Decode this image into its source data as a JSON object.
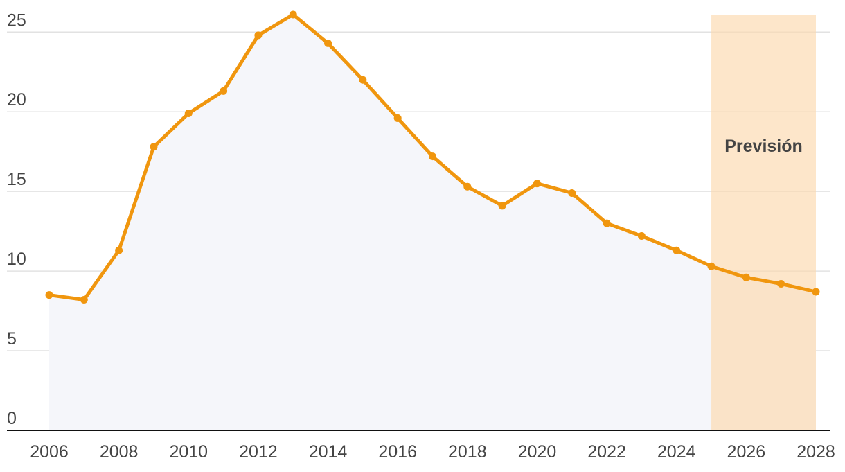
{
  "chart_data": {
    "type": "line",
    "x": [
      2006,
      2007,
      2008,
      2009,
      2010,
      2011,
      2012,
      2013,
      2014,
      2015,
      2016,
      2017,
      2018,
      2019,
      2020,
      2021,
      2022,
      2023,
      2024,
      2025,
      2026,
      2027,
      2028
    ],
    "series": [
      {
        "color": "#f0960e",
        "values": [
          8.5,
          8.2,
          11.3,
          17.8,
          19.9,
          21.3,
          24.8,
          26.1,
          24.3,
          22.0,
          19.6,
          17.2,
          15.3,
          14.1,
          15.5,
          14.9,
          13.0,
          12.2,
          11.3,
          10.3,
          9.6,
          9.2,
          8.7
        ]
      }
    ],
    "xlim": [
      2006,
      2028
    ],
    "xticks": [
      2006,
      2008,
      2010,
      2012,
      2014,
      2016,
      2018,
      2020,
      2022,
      2024,
      2026,
      2028
    ],
    "ylim": [
      0,
      26.1
    ],
    "yticks": [
      0,
      5,
      10,
      15,
      20,
      25
    ],
    "grid": true,
    "forecast": {
      "label": "Previsión",
      "xlim": [
        2025,
        2028
      ]
    }
  }
}
